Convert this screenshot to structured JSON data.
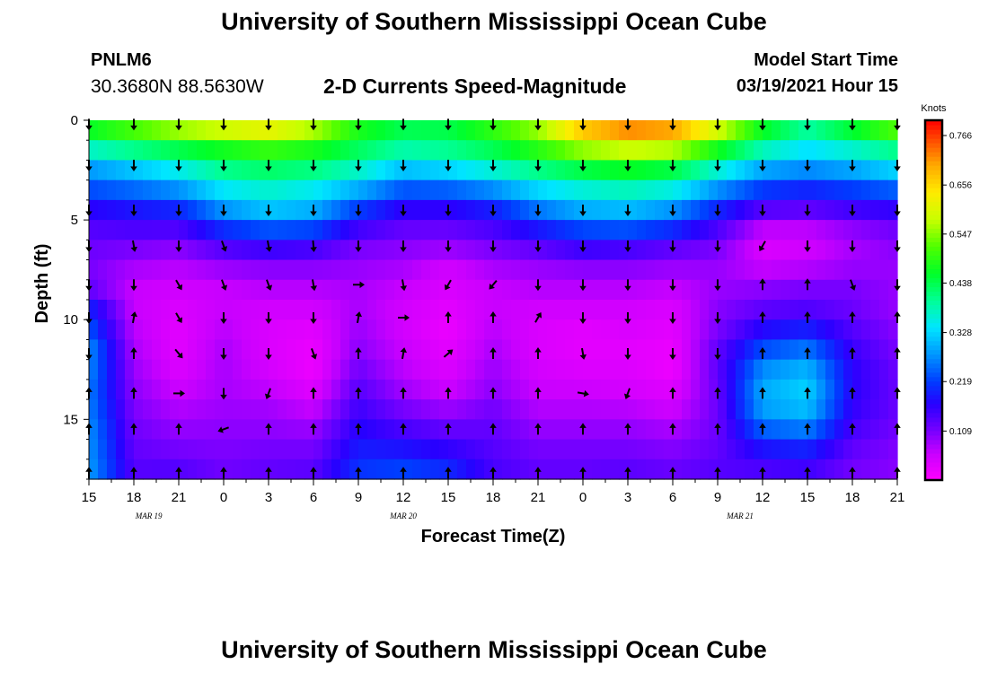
{
  "header": {
    "title": "University of Southern Mississippi Ocean Cube",
    "station_id": "PNLM6",
    "station_coords": "30.3680N 88.5630W",
    "plot_title": "2-D Currents Speed-Magnitude",
    "model_start_label": "Model Start Time",
    "model_start_value": "03/19/2021 Hour 15"
  },
  "footer": {
    "title": "University of Southern Mississippi Ocean Cube"
  },
  "chart_data": {
    "type": "heatmap",
    "title": "2-D Currents Speed-Magnitude",
    "xlabel": "Forecast Time(Z)",
    "ylabel": "Depth (ft)",
    "x_hours": [
      0,
      3,
      6,
      9,
      12,
      15,
      18,
      21,
      24,
      27,
      30,
      33,
      36,
      39,
      42,
      45,
      48,
      51,
      54
    ],
    "x_tick_labels": [
      "15",
      "18",
      "21",
      "0",
      "3",
      "6",
      "9",
      "12",
      "15",
      "18",
      "21",
      "0",
      "3",
      "6",
      "9",
      "12",
      "15",
      "18",
      "21"
    ],
    "date_labels": [
      {
        "hour": 4,
        "label": "MAR 19"
      },
      {
        "hour": 21,
        "label": "MAR 20"
      },
      {
        "hour": 43.5,
        "label": "MAR 21"
      }
    ],
    "y_ticks": [
      0,
      5,
      10,
      15
    ],
    "ylim": [
      0,
      18
    ],
    "colorbar": {
      "title": "Knots",
      "ticks": [
        "0.766",
        "0.656",
        "0.547",
        "0.438",
        "0.328",
        "0.219",
        "0.109"
      ],
      "tick_values": [
        0.766,
        0.656,
        0.547,
        0.438,
        0.328,
        0.219,
        0.109
      ],
      "range": [
        0,
        0.8
      ]
    },
    "depths_ft": [
      0,
      1.1,
      2.1,
      3.2,
      4.2,
      5.3,
      6.4,
      7.4,
      8.5,
      9.5,
      10.6,
      11.7,
      12.7,
      13.8,
      14.8,
      15.9,
      16.9,
      18
    ],
    "speed_columns": [
      {
        "hour": 0,
        "values": [
          0.5,
          0.42,
          0.3,
          0.25,
          0.18,
          0.14,
          0.12,
          0.11,
          0.13,
          0.2,
          0.24,
          0.28,
          0.27,
          0.26,
          0.27,
          0.28,
          0.28,
          0.29
        ]
      },
      {
        "hour": 3,
        "values": [
          0.56,
          0.45,
          0.34,
          0.27,
          0.2,
          0.15,
          0.11,
          0.08,
          0.06,
          0.06,
          0.07,
          0.08,
          0.09,
          0.1,
          0.11,
          0.12,
          0.13,
          0.14
        ]
      },
      {
        "hour": 6,
        "values": [
          0.62,
          0.48,
          0.38,
          0.3,
          0.22,
          0.15,
          0.1,
          0.07,
          0.05,
          0.04,
          0.03,
          0.03,
          0.04,
          0.06,
          0.08,
          0.1,
          0.12,
          0.15
        ]
      },
      {
        "hour": 9,
        "values": [
          0.66,
          0.5,
          0.43,
          0.36,
          0.3,
          0.22,
          0.14,
          0.09,
          0.06,
          0.06,
          0.07,
          0.08,
          0.08,
          0.08,
          0.09,
          0.1,
          0.11,
          0.12
        ]
      },
      {
        "hour": 12,
        "values": [
          0.68,
          0.53,
          0.45,
          0.38,
          0.34,
          0.25,
          0.16,
          0.1,
          0.07,
          0.05,
          0.04,
          0.04,
          0.05,
          0.07,
          0.09,
          0.1,
          0.12,
          0.13
        ]
      },
      {
        "hour": 15,
        "values": [
          0.62,
          0.5,
          0.44,
          0.36,
          0.32,
          0.24,
          0.15,
          0.1,
          0.07,
          0.05,
          0.03,
          0.02,
          0.02,
          0.04,
          0.07,
          0.1,
          0.12,
          0.14
        ]
      },
      {
        "hour": 18,
        "values": [
          0.5,
          0.45,
          0.4,
          0.32,
          0.24,
          0.16,
          0.11,
          0.09,
          0.08,
          0.08,
          0.09,
          0.1,
          0.12,
          0.14,
          0.16,
          0.18,
          0.2,
          0.22
        ]
      },
      {
        "hour": 21,
        "values": [
          0.45,
          0.42,
          0.34,
          0.26,
          0.18,
          0.13,
          0.1,
          0.08,
          0.06,
          0.05,
          0.05,
          0.06,
          0.07,
          0.09,
          0.12,
          0.16,
          0.2,
          0.24
        ]
      },
      {
        "hour": 24,
        "values": [
          0.45,
          0.43,
          0.36,
          0.27,
          0.18,
          0.13,
          0.09,
          0.05,
          0.04,
          0.03,
          0.02,
          0.03,
          0.04,
          0.06,
          0.1,
          0.14,
          0.18,
          0.22
        ]
      },
      {
        "hour": 27,
        "values": [
          0.52,
          0.46,
          0.4,
          0.3,
          0.21,
          0.15,
          0.11,
          0.08,
          0.06,
          0.06,
          0.07,
          0.08,
          0.09,
          0.1,
          0.12,
          0.13,
          0.14,
          0.15
        ]
      },
      {
        "hour": 30,
        "values": [
          0.58,
          0.52,
          0.44,
          0.35,
          0.28,
          0.2,
          0.13,
          0.09,
          0.07,
          0.05,
          0.04,
          0.04,
          0.05,
          0.06,
          0.08,
          0.1,
          0.12,
          0.13
        ]
      },
      {
        "hour": 33,
        "values": [
          0.73,
          0.6,
          0.48,
          0.38,
          0.32,
          0.24,
          0.16,
          0.1,
          0.07,
          0.05,
          0.03,
          0.03,
          0.04,
          0.06,
          0.08,
          0.1,
          0.12,
          0.13
        ]
      },
      {
        "hour": 36,
        "values": [
          0.78,
          0.64,
          0.5,
          0.4,
          0.33,
          0.25,
          0.15,
          0.1,
          0.07,
          0.05,
          0.04,
          0.03,
          0.04,
          0.05,
          0.08,
          0.1,
          0.12,
          0.14
        ]
      },
      {
        "hour": 39,
        "values": [
          0.76,
          0.63,
          0.48,
          0.38,
          0.3,
          0.22,
          0.13,
          0.09,
          0.06,
          0.04,
          0.03,
          0.02,
          0.02,
          0.04,
          0.06,
          0.09,
          0.11,
          0.13
        ]
      },
      {
        "hour": 42,
        "values": [
          0.65,
          0.52,
          0.4,
          0.3,
          0.22,
          0.15,
          0.11,
          0.09,
          0.09,
          0.1,
          0.11,
          0.13,
          0.13,
          0.12,
          0.12,
          0.12,
          0.13,
          0.14
        ]
      },
      {
        "hour": 45,
        "values": [
          0.5,
          0.42,
          0.32,
          0.24,
          0.16,
          0.07,
          0.04,
          0.06,
          0.1,
          0.13,
          0.18,
          0.24,
          0.28,
          0.3,
          0.28,
          0.22,
          0.16,
          0.13
        ]
      },
      {
        "hour": 48,
        "values": [
          0.42,
          0.36,
          0.3,
          0.22,
          0.15,
          0.07,
          0.05,
          0.07,
          0.11,
          0.14,
          0.2,
          0.27,
          0.31,
          0.33,
          0.3,
          0.24,
          0.17,
          0.14
        ]
      },
      {
        "hour": 51,
        "values": [
          0.5,
          0.4,
          0.32,
          0.24,
          0.17,
          0.1,
          0.08,
          0.09,
          0.11,
          0.12,
          0.14,
          0.16,
          0.17,
          0.17,
          0.16,
          0.14,
          0.12,
          0.11
        ]
      },
      {
        "hour": 54,
        "values": [
          0.58,
          0.44,
          0.36,
          0.27,
          0.18,
          0.12,
          0.1,
          0.09,
          0.09,
          0.09,
          0.1,
          0.11,
          0.12,
          0.12,
          0.12,
          0.11,
          0.1,
          0.1
        ]
      }
    ],
    "arrow_depths_ft": [
      0.2,
      2.25,
      4.5,
      6.3,
      8.25,
      9.9,
      11.7,
      13.7,
      15.5,
      17.7
    ],
    "arrow_directions_deg": [
      [
        180,
        180,
        180,
        180,
        180,
        180,
        180,
        180,
        180,
        180,
        180,
        180,
        180,
        180,
        180,
        180,
        180,
        180,
        180
      ],
      [
        180,
        180,
        180,
        180,
        180,
        180,
        180,
        180,
        180,
        180,
        180,
        180,
        180,
        180,
        180,
        180,
        180,
        180,
        180
      ],
      [
        180,
        180,
        180,
        180,
        180,
        180,
        180,
        180,
        180,
        180,
        180,
        180,
        180,
        180,
        180,
        180,
        180,
        180,
        180
      ],
      [
        180,
        170,
        180,
        160,
        170,
        175,
        180,
        180,
        180,
        180,
        180,
        180,
        180,
        180,
        180,
        210,
        180,
        180,
        180
      ],
      [
        180,
        180,
        150,
        160,
        160,
        170,
        90,
        170,
        210,
        220,
        180,
        180,
        180,
        180,
        180,
        0,
        0,
        160,
        180
      ],
      [
        180,
        10,
        150,
        180,
        180,
        180,
        10,
        90,
        0,
        0,
        30,
        180,
        180,
        180,
        180,
        0,
        0,
        0,
        0
      ],
      [
        180,
        0,
        140,
        180,
        180,
        160,
        0,
        10,
        50,
        0,
        0,
        170,
        180,
        180,
        180,
        0,
        0,
        0,
        0
      ],
      [
        0,
        0,
        90,
        180,
        200,
        0,
        0,
        0,
        0,
        0,
        0,
        100,
        200,
        0,
        0,
        0,
        0,
        0,
        0
      ],
      [
        0,
        0,
        0,
        250,
        0,
        0,
        0,
        0,
        0,
        0,
        0,
        0,
        0,
        0,
        0,
        0,
        0,
        0,
        0
      ],
      [
        0,
        0,
        0,
        0,
        0,
        0,
        0,
        0,
        0,
        0,
        0,
        0,
        0,
        0,
        0,
        0,
        0,
        0,
        0
      ]
    ]
  }
}
